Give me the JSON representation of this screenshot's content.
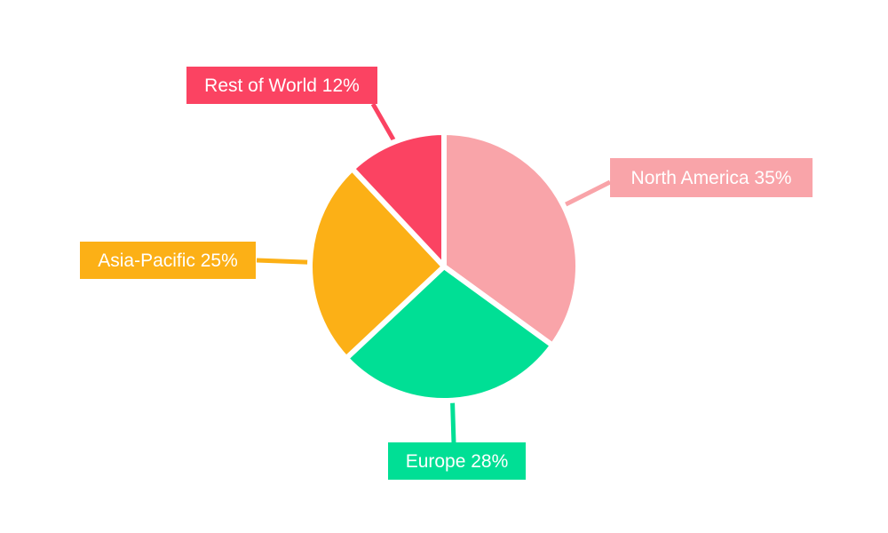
{
  "chart_data": {
    "type": "pie",
    "title": "",
    "categories": [
      "North America",
      "Europe",
      "Asia-Pacific",
      "Rest of World"
    ],
    "values": [
      35,
      28,
      25,
      12
    ],
    "unit": "%",
    "labels": [
      "North America 35%",
      "Europe 28%",
      "Asia-Pacific 25%",
      "Rest of World 12%"
    ],
    "colors": [
      "#F9A4A9",
      "#00DF95",
      "#FCB016",
      "#FB4362"
    ],
    "start_angle_deg": 0,
    "direction": "clockwise",
    "legend_position": "none",
    "label_style": "outside-callout-boxes-with-leader-lines",
    "label_text_color": "#FFFFFF",
    "slice_separator_color": "#FFFFFF",
    "background_color": "#FFFFFF"
  }
}
